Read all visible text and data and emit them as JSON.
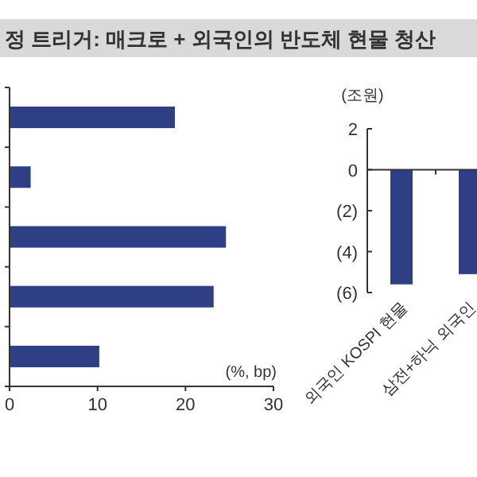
{
  "chart_data": [
    {
      "type": "bar",
      "title": "정 트리거: 매크로 + 외국인의 반도체 현물 청산",
      "orientation": "horizontal",
      "categories": [
        null,
        null,
        null,
        null,
        null
      ],
      "values": [
        18.8,
        2.4,
        24.6,
        23.2,
        10.2
      ],
      "color": "#2e3f85",
      "xlim": [
        0,
        30
      ],
      "xticks": [
        0,
        10,
        20,
        30
      ],
      "annotations": [
        "(%, bp)"
      ]
    },
    {
      "type": "bar",
      "ylabel": "(조원)",
      "categories": [
        "외국인 KOSPI 현물",
        "삼전+하닉 외국인"
      ],
      "values": [
        -5.6,
        -5.1
      ],
      "color": "#2e3f85",
      "ylim": [
        -6,
        2
      ],
      "yticks": [
        2,
        0,
        {
          "value": -2,
          "label": "(2)"
        },
        {
          "value": -4,
          "label": "(4)"
        },
        {
          "value": -6,
          "label": "(6)"
        }
      ]
    }
  ]
}
